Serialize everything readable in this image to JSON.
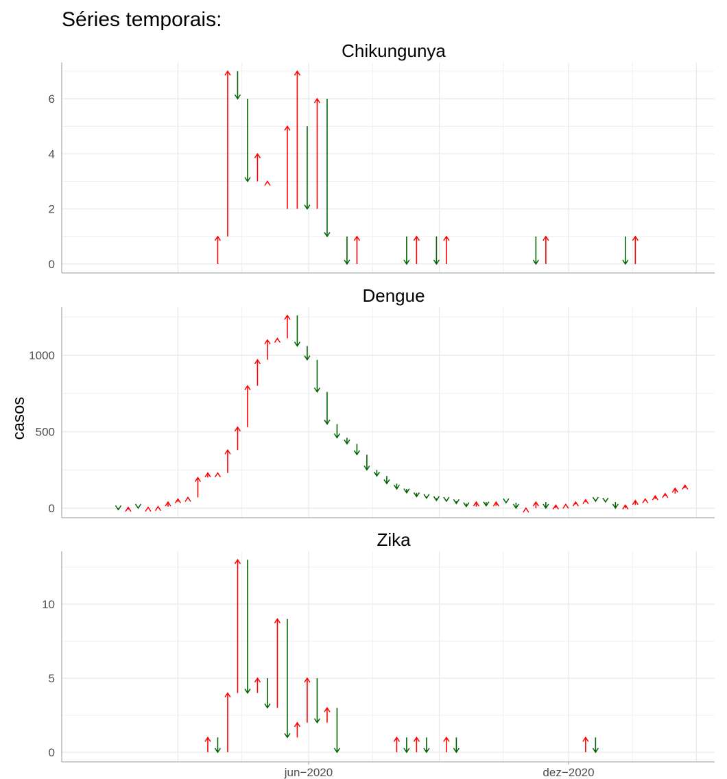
{
  "page_title": "Séries temporais:",
  "ylabel": "casos",
  "x_ticks": [
    "jun−2020",
    "dez−2020"
  ],
  "colors": {
    "increase": "#ff0000",
    "decrease": "#006400",
    "grid": "#ebebeb",
    "axis": "#999999"
  },
  "chart_data": [
    {
      "type": "arrow",
      "title": "Chikungunya",
      "ylim": [
        0,
        7
      ],
      "yticks": [
        0,
        2,
        4,
        6
      ],
      "x_dates": [
        "2020-03-29",
        "2020-04-05",
        "2020-04-12",
        "2020-04-19",
        "2020-04-26",
        "2020-05-03",
        "2020-05-17",
        "2020-05-24",
        "2020-05-31",
        "2020-06-07",
        "2020-06-14",
        "2020-06-28",
        "2020-07-05",
        "2020-08-09",
        "2020-08-16",
        "2020-08-30",
        "2020-09-06",
        "2020-11-08",
        "2020-11-15",
        "2021-01-10",
        "2021-01-17"
      ],
      "from": [
        0,
        1,
        7,
        6,
        3,
        3,
        2,
        2,
        5,
        2,
        6,
        1,
        0,
        1,
        0,
        1,
        0,
        1,
        0,
        1,
        0
      ],
      "to": [
        1,
        7,
        6,
        3,
        4,
        3,
        5,
        7,
        2,
        6,
        1,
        0,
        1,
        0,
        1,
        0,
        1,
        0,
        1,
        0,
        1
      ]
    },
    {
      "type": "arrow",
      "title": "Dengue",
      "ylim": [
        0,
        1250
      ],
      "yticks": [
        0,
        500,
        1000
      ],
      "x_dates": [
        "2020-01-19",
        "2020-01-26",
        "2020-02-02",
        "2020-02-09",
        "2020-02-16",
        "2020-02-23",
        "2020-03-01",
        "2020-03-08",
        "2020-03-15",
        "2020-03-22",
        "2020-03-29",
        "2020-04-05",
        "2020-04-12",
        "2020-04-19",
        "2020-04-26",
        "2020-05-03",
        "2020-05-10",
        "2020-05-17",
        "2020-05-24",
        "2020-05-31",
        "2020-06-07",
        "2020-06-14",
        "2020-06-21",
        "2020-06-28",
        "2020-07-05",
        "2020-07-12",
        "2020-07-19",
        "2020-07-26",
        "2020-08-02",
        "2020-08-09",
        "2020-08-16",
        "2020-08-23",
        "2020-08-30",
        "2020-09-06",
        "2020-09-13",
        "2020-09-20",
        "2020-09-27",
        "2020-10-04",
        "2020-10-11",
        "2020-10-18",
        "2020-10-25",
        "2020-11-01",
        "2020-11-08",
        "2020-11-15",
        "2020-11-22",
        "2020-11-29",
        "2020-12-06",
        "2020-12-13",
        "2020-12-20",
        "2020-12-27",
        "2021-01-03",
        "2021-01-10",
        "2021-01-17",
        "2021-01-24",
        "2021-01-31",
        "2021-02-07",
        "2021-02-14",
        "2021-02-21"
      ],
      "from": [
        0,
        -10,
        5,
        0,
        5,
        10,
        40,
        60,
        70,
        200,
        230,
        230,
        380,
        530,
        800,
        970,
        1100,
        1110,
        1260,
        1060,
        970,
        760,
        550,
        460,
        420,
        350,
        250,
        210,
        160,
        125,
        100,
        75,
        65,
        50,
        45,
        30,
        10,
        40,
        15,
        40,
        35,
        0,
        0,
        40,
        0,
        20,
        25,
        40,
        55,
        45,
        40,
        0,
        20,
        50,
        60,
        80,
        95,
        130
      ],
      "to": [
        -10,
        5,
        0,
        5,
        10,
        40,
        60,
        70,
        200,
        230,
        230,
        380,
        530,
        800,
        970,
        1100,
        1110,
        1260,
        1060,
        970,
        760,
        550,
        460,
        420,
        350,
        250,
        210,
        160,
        125,
        100,
        75,
        65,
        50,
        45,
        30,
        10,
        40,
        15,
        40,
        35,
        0,
        0,
        40,
        0,
        20,
        25,
        40,
        55,
        45,
        40,
        0,
        20,
        50,
        60,
        80,
        95,
        130,
        150
      ]
    },
    {
      "type": "arrow",
      "title": "Zika",
      "ylim": [
        0,
        13
      ],
      "yticks": [
        0,
        5,
        10
      ],
      "x_dates": [
        "2020-03-22",
        "2020-03-29",
        "2020-04-05",
        "2020-04-12",
        "2020-04-19",
        "2020-04-26",
        "2020-05-03",
        "2020-05-10",
        "2020-05-17",
        "2020-05-24",
        "2020-05-31",
        "2020-06-07",
        "2020-06-14",
        "2020-06-21",
        "2020-08-02",
        "2020-08-09",
        "2020-08-16",
        "2020-08-23",
        "2020-09-06",
        "2020-09-13",
        "2020-12-13",
        "2020-12-20"
      ],
      "from": [
        0,
        1,
        0,
        4,
        13,
        4,
        5,
        3,
        9,
        1,
        2,
        5,
        2,
        3,
        0,
        1,
        0,
        1,
        0,
        1,
        0,
        1
      ],
      "to": [
        1,
        0,
        4,
        13,
        4,
        5,
        3,
        9,
        1,
        2,
        5,
        2,
        3,
        0,
        1,
        0,
        1,
        0,
        1,
        0,
        1,
        0
      ]
    }
  ]
}
